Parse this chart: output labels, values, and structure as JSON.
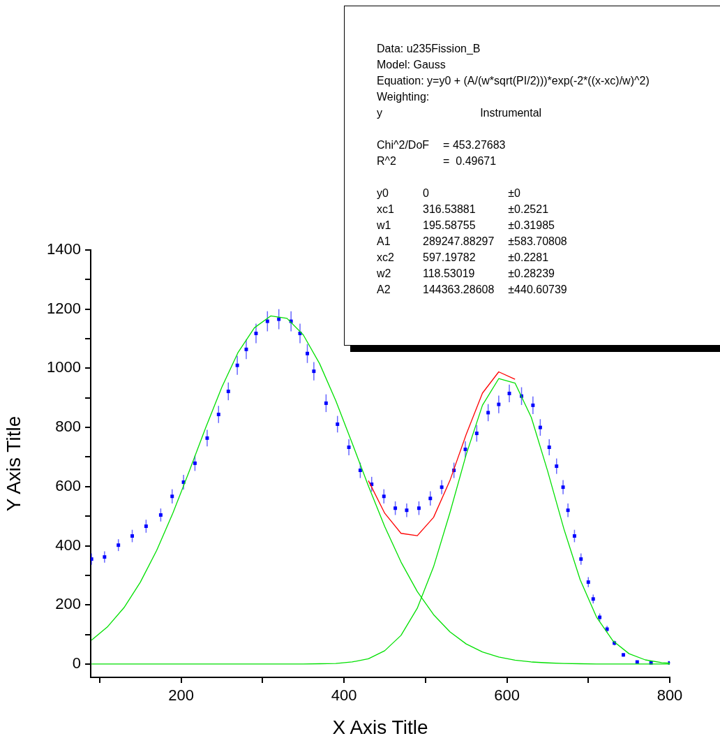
{
  "chart_data": {
    "type": "scatter",
    "xlabel": "X Axis Title",
    "ylabel": "Y Axis Title",
    "xlim": [
      89,
      800
    ],
    "ylim": [
      -45,
      1400
    ],
    "xticks": [
      {
        "value": 100,
        "label": null
      },
      200,
      {
        "value": 300,
        "label": null
      },
      400,
      {
        "value": 500,
        "label": null
      },
      600,
      {
        "value": 700,
        "label": null
      },
      800
    ],
    "yticks": [
      0,
      {
        "value": 100,
        "label": null
      },
      200,
      {
        "value": 300,
        "label": null
      },
      400,
      {
        "value": 500,
        "label": null
      },
      600,
      {
        "value": 700,
        "label": null
      },
      800,
      {
        "value": 900,
        "label": null
      },
      1000,
      {
        "value": 1100,
        "label": null
      },
      1200,
      {
        "value": 1300,
        "label": null
      },
      1400
    ],
    "annotations": [
      "Data: u235Fission_B\nModel: Gauss\nEquation: y=y0 + (A/(w*sqrt(PI/2)))*exp(-2*((x-xc)/w)^2)\nWeighting:\ny\tInstrumental",
      "Chi^2/DoF\t= 453.27683\nR^2\t=  0.49671",
      "y0\t0\t±0\nxc1\t316.53881\t±0.2521\nw1\t195.58755\t±0.31985\nA1\t289247.88297\t±583.70808\nxc2\t597.19782\t±0.2281\nw2\t118.53019\t±0.28239\nA2\t144363.28608\t±440.60739"
    ],
    "series": [
      {
        "type": "scatter",
        "color": "#0000ff",
        "marker": "square",
        "x": [
          90,
          106,
          123,
          140,
          157,
          175,
          189,
          203,
          217,
          232,
          246,
          258,
          269,
          280,
          292,
          306,
          320,
          335,
          346,
          355,
          363,
          378,
          392,
          406,
          420,
          434,
          449,
          463,
          477,
          492,
          506,
          520,
          535,
          549,
          563,
          577,
          590,
          603,
          618,
          632,
          641,
          652,
          661,
          669,
          675,
          683,
          691,
          700,
          706,
          714,
          723,
          732,
          743,
          760,
          777,
          800
        ],
        "values": [
          355,
          362,
          402,
          433,
          466,
          504,
          567,
          615,
          679,
          764,
          844,
          922,
          1010,
          1064,
          1118,
          1159,
          1166,
          1159,
          1118,
          1050,
          990,
          882,
          811,
          733,
          655,
          608,
          567,
          527,
          520,
          527,
          560,
          598,
          655,
          726,
          780,
          850,
          878,
          915,
          906,
          875,
          800,
          733,
          669,
          598,
          520,
          433,
          355,
          277,
          220,
          158,
          118,
          71,
          31,
          7,
          4,
          4
        ],
        "errors": [
          19,
          19,
          20,
          21,
          22,
          22,
          24,
          25,
          26,
          28,
          29,
          30,
          32,
          33,
          33,
          34,
          34,
          34,
          33,
          32,
          31,
          30,
          28,
          27,
          26,
          25,
          24,
          23,
          23,
          23,
          24,
          24,
          26,
          27,
          28,
          29,
          30,
          30,
          30,
          30,
          28,
          27,
          26,
          24,
          23,
          21,
          19,
          17,
          15,
          13,
          11,
          8,
          6,
          3,
          2,
          2
        ]
      },
      {
        "type": "line",
        "color": "#ff0000",
        "x": [
          430,
          450,
          470,
          490,
          510,
          530,
          550,
          570,
          590,
          610
        ],
        "values": [
          620,
          510,
          442,
          434,
          496,
          620,
          776,
          916,
          988,
          963
        ]
      },
      {
        "type": "line",
        "color": "#00e000",
        "x": [
          90,
          110,
          130,
          150,
          170,
          190,
          210,
          230,
          250,
          270,
          290,
          310,
          330,
          350,
          370,
          390,
          410,
          430,
          450,
          470,
          490,
          510,
          530,
          550,
          570,
          590,
          610,
          630,
          650,
          670,
          690,
          710,
          730,
          750,
          770,
          790,
          800
        ],
        "values": [
          81,
          127,
          191,
          277,
          384,
          511,
          652,
          798,
          936,
          1054,
          1137,
          1177,
          1169,
          1113,
          1016,
          890,
          747,
          602,
          465,
          345,
          245,
          167,
          109,
          68,
          41,
          24,
          13,
          7,
          4,
          2,
          1,
          0,
          0,
          0,
          0,
          0,
          0
        ]
      },
      {
        "type": "line",
        "color": "#00e000",
        "x": [
          90,
          110,
          130,
          150,
          170,
          190,
          210,
          230,
          250,
          270,
          290,
          310,
          330,
          350,
          370,
          390,
          410,
          430,
          450,
          470,
          490,
          510,
          530,
          550,
          570,
          590,
          610,
          630,
          650,
          670,
          690,
          710,
          730,
          750,
          770,
          790,
          800
        ],
        "values": [
          0,
          0,
          0,
          0,
          0,
          0,
          0,
          0,
          0,
          0,
          0,
          0,
          0,
          0,
          1,
          2,
          7,
          18,
          45,
          97,
          189,
          329,
          511,
          708,
          875,
          965,
          950,
          834,
          653,
          457,
          285,
          159,
          79,
          35,
          14,
          5,
          3
        ]
      }
    ]
  }
}
